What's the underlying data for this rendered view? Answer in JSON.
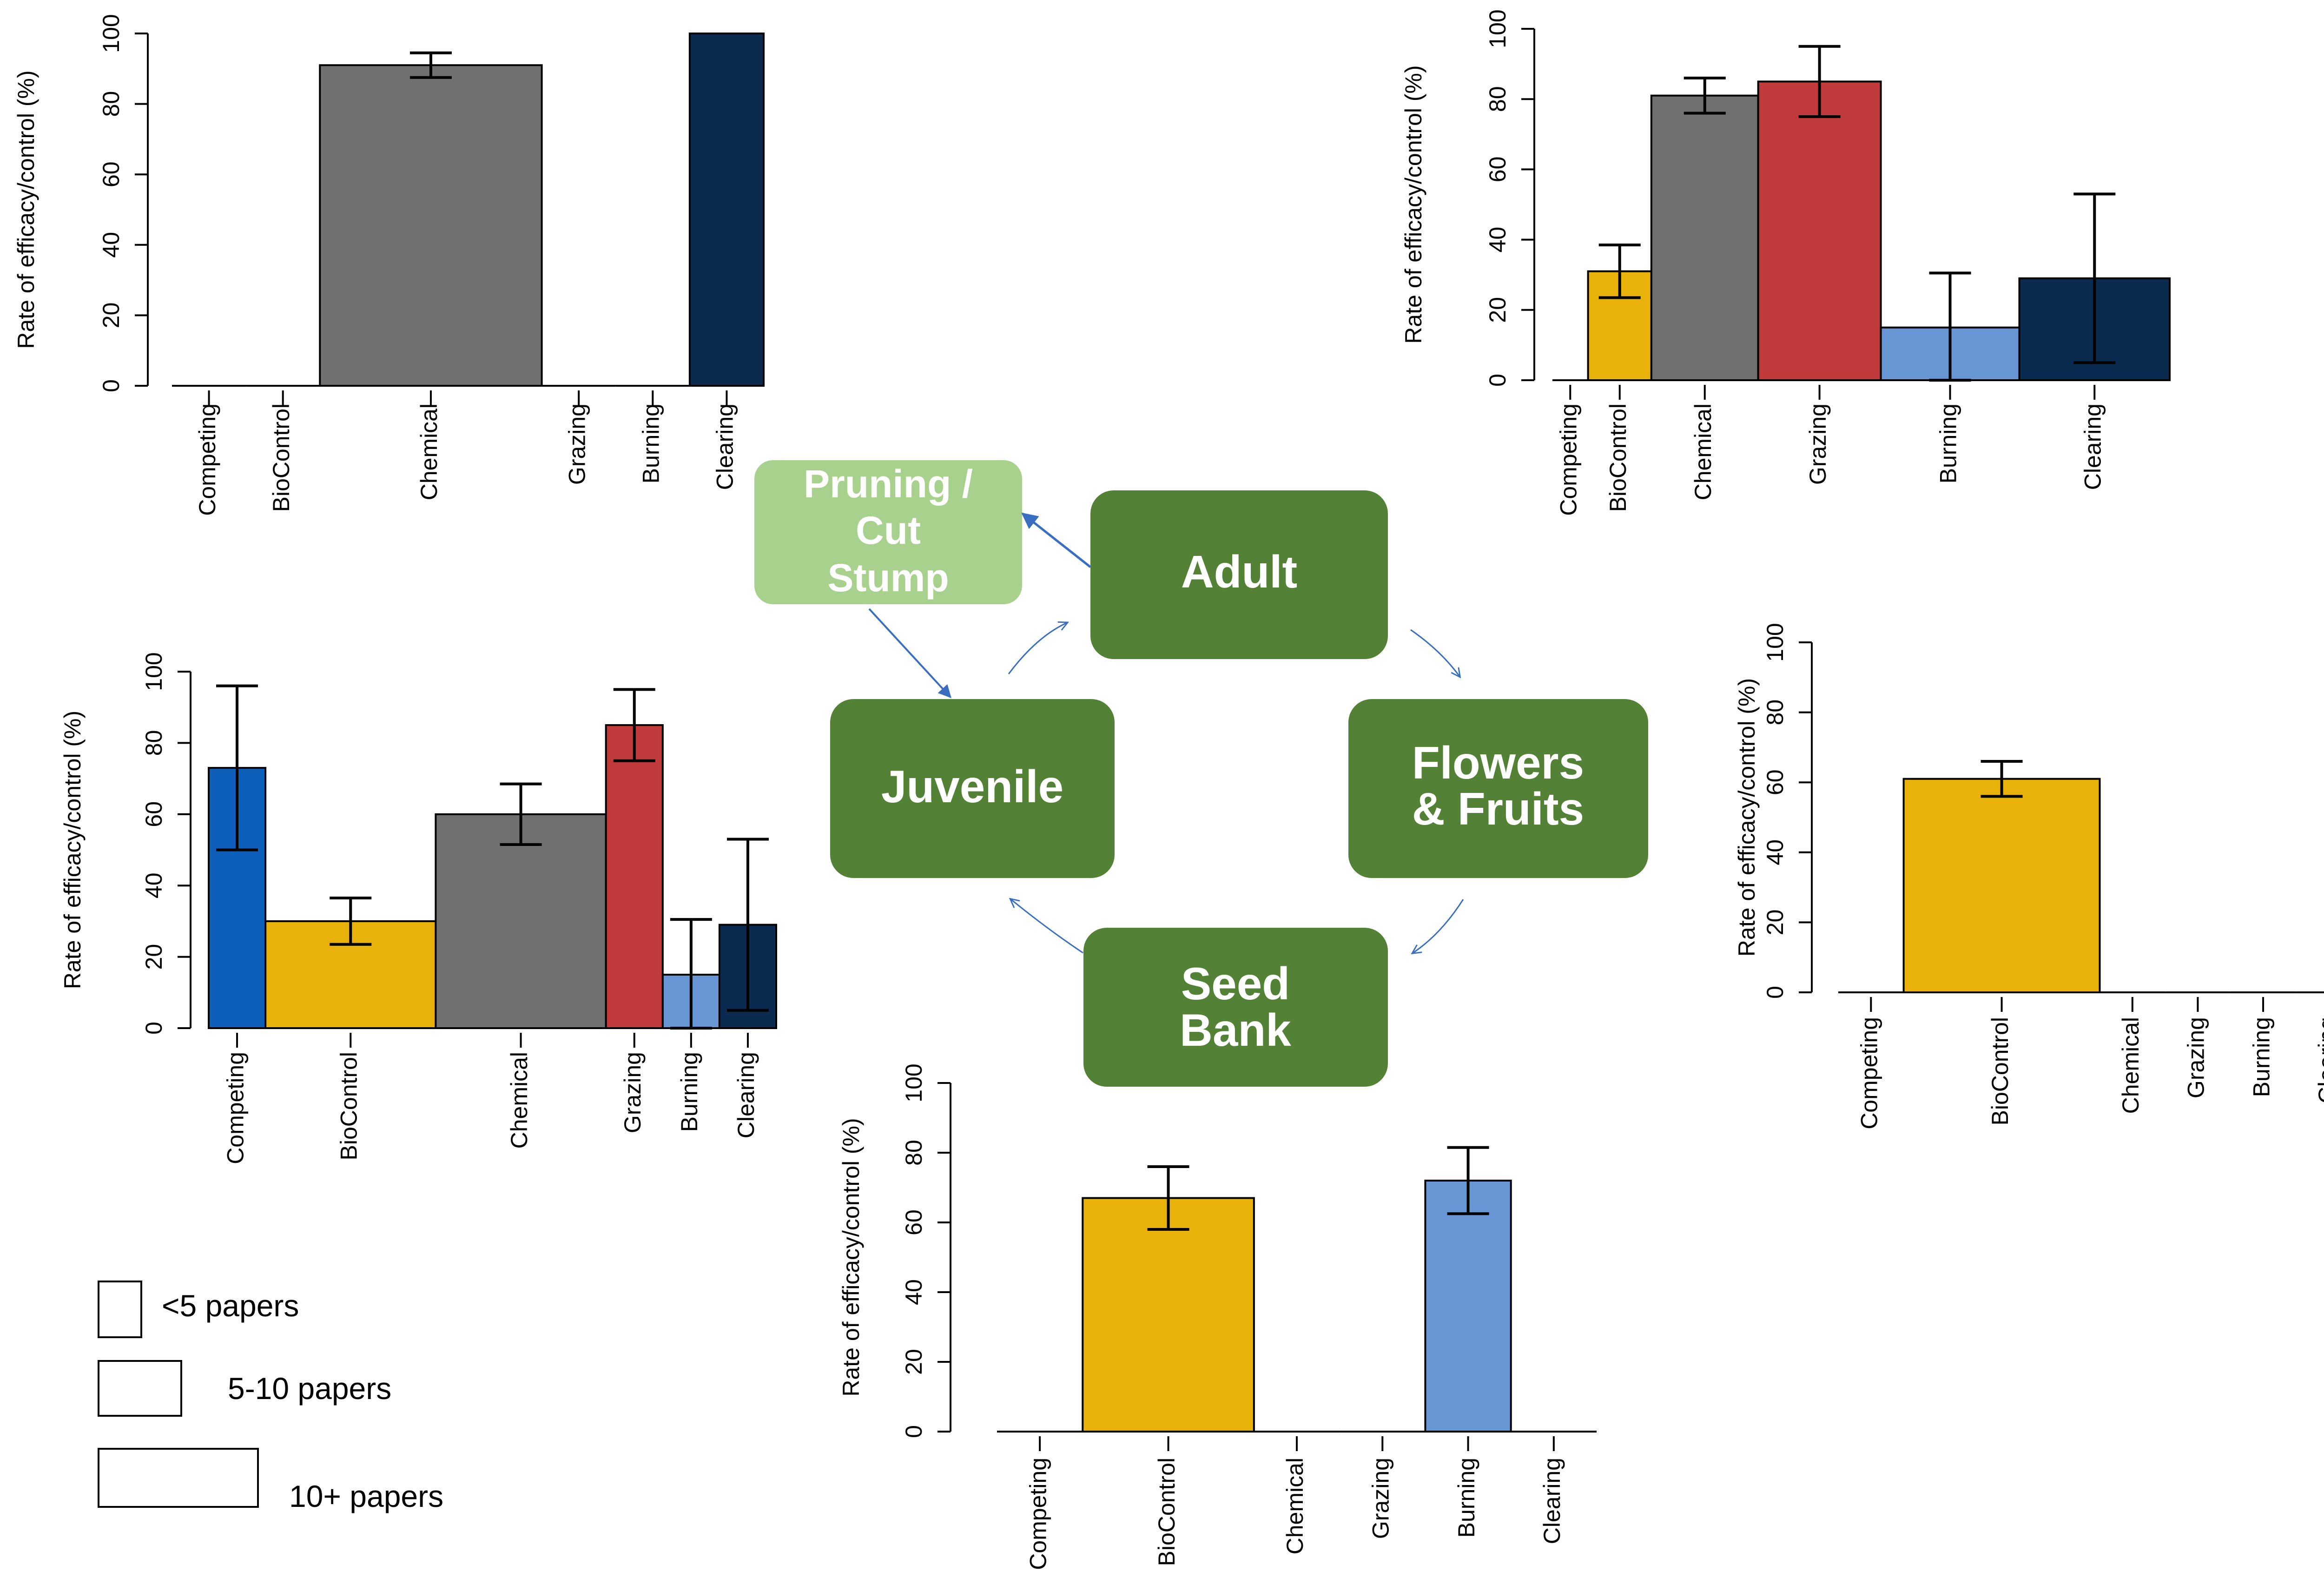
{
  "colors": {
    "competing": "#0e5fb9",
    "biocontrol": "#e8b20a",
    "chemical": "#707070",
    "grazing": "#c23b3c",
    "burning": "#6896d5",
    "clearing": "#0b2a50",
    "stage_dark": "#538135",
    "stage_light": "#a9d18e",
    "arrow": "#3a6ec0"
  },
  "lifecycle": {
    "adult": "Adult",
    "pruning_lines": [
      "Pruning /",
      "Cut",
      "Stump"
    ],
    "juvenile": "Juvenile",
    "flowers_lines": [
      "Flowers",
      "& Fruits"
    ],
    "seed_lines": [
      "Seed",
      "Bank"
    ]
  },
  "legend": {
    "items": [
      {
        "label": "<5 papers"
      },
      {
        "label": "5-10 papers"
      },
      {
        "label": "10+ papers"
      }
    ]
  },
  "chart_data": [
    {
      "id": "chart-pruning",
      "type": "bar",
      "title": "",
      "ylabel": "Rate of efficacy/control (%)",
      "ylim": [
        0,
        100
      ],
      "yticks": [
        0,
        20,
        40,
        60,
        80,
        100
      ],
      "categories": [
        "Competing",
        "BioControl",
        "Chemical",
        "Grazing",
        "Burning",
        "Clearing"
      ],
      "values": [
        0,
        0,
        91,
        0,
        0,
        100
      ],
      "errors": [
        null,
        null,
        3.5,
        null,
        null,
        0
      ],
      "widths": [
        1,
        1,
        3,
        1,
        1,
        1
      ],
      "colors": [
        "#0e5fb9",
        "#e8b20a",
        "#707070",
        "#c23b3c",
        "#6896d5",
        "#0b2a50"
      ]
    },
    {
      "id": "chart-adult",
      "type": "bar",
      "title": "",
      "ylabel": "Rate of efficacy/control (%)",
      "ylim": [
        0,
        100
      ],
      "yticks": [
        0,
        20,
        40,
        60,
        80,
        100
      ],
      "categories": [
        "Competing",
        "BioControl",
        "Chemical",
        "Grazing",
        "Burning",
        "Clearing"
      ],
      "values": [
        0,
        31,
        81,
        85,
        15,
        29
      ],
      "errors": [
        null,
        7.5,
        5,
        10,
        15.5,
        24
      ],
      "widths": [
        0.9,
        1.6,
        2.7,
        3.1,
        3.5,
        3.8
      ],
      "colors": [
        "#0e5fb9",
        "#e8b20a",
        "#707070",
        "#c23b3c",
        "#6896d5",
        "#0b2a50"
      ]
    },
    {
      "id": "chart-juvenile",
      "type": "bar",
      "title": "",
      "ylabel": "Rate of efficacy/control (%)",
      "ylim": [
        0,
        100
      ],
      "yticks": [
        0,
        20,
        40,
        60,
        80,
        100
      ],
      "categories": [
        "Competing",
        "BioControl",
        "Chemical",
        "Grazing",
        "Burning",
        "Clearing"
      ],
      "values": [
        73,
        30,
        60,
        85,
        15,
        29
      ],
      "errors": [
        23,
        6.5,
        8.5,
        10,
        15.5,
        24
      ],
      "widths": [
        1,
        3,
        3,
        1,
        1,
        1
      ],
      "colors": [
        "#0e5fb9",
        "#e8b20a",
        "#707070",
        "#c23b3c",
        "#6896d5",
        "#0b2a50"
      ]
    },
    {
      "id": "chart-flowers",
      "type": "bar",
      "title": "",
      "ylabel": "Rate of efficacy/control (%)",
      "ylim": [
        0,
        100
      ],
      "yticks": [
        0,
        20,
        40,
        60,
        80,
        100
      ],
      "categories": [
        "Competing",
        "BioControl",
        "Chemical",
        "Grazing",
        "Burning",
        "Clearing"
      ],
      "values": [
        0,
        61,
        0,
        0,
        0,
        0
      ],
      "errors": [
        null,
        5,
        null,
        null,
        null,
        null
      ],
      "widths": [
        1,
        3,
        1,
        1,
        1,
        1
      ],
      "colors": [
        "#0e5fb9",
        "#e8b20a",
        "#707070",
        "#c23b3c",
        "#6896d5",
        "#0b2a50"
      ]
    },
    {
      "id": "chart-seed",
      "type": "bar",
      "title": "",
      "ylabel": "Rate of efficacy/control (%)",
      "ylim": [
        0,
        100
      ],
      "yticks": [
        0,
        20,
        40,
        60,
        80,
        100
      ],
      "categories": [
        "Competing",
        "BioControl",
        "Chemical",
        "Grazing",
        "Burning",
        "Clearing"
      ],
      "values": [
        0,
        67,
        0,
        0,
        72,
        0
      ],
      "errors": [
        null,
        9,
        null,
        null,
        9.5,
        null
      ],
      "widths": [
        1,
        2,
        1,
        1,
        1,
        1
      ],
      "colors": [
        "#0e5fb9",
        "#e8b20a",
        "#707070",
        "#c23b3c",
        "#6896d5",
        "#0b2a50"
      ]
    }
  ]
}
